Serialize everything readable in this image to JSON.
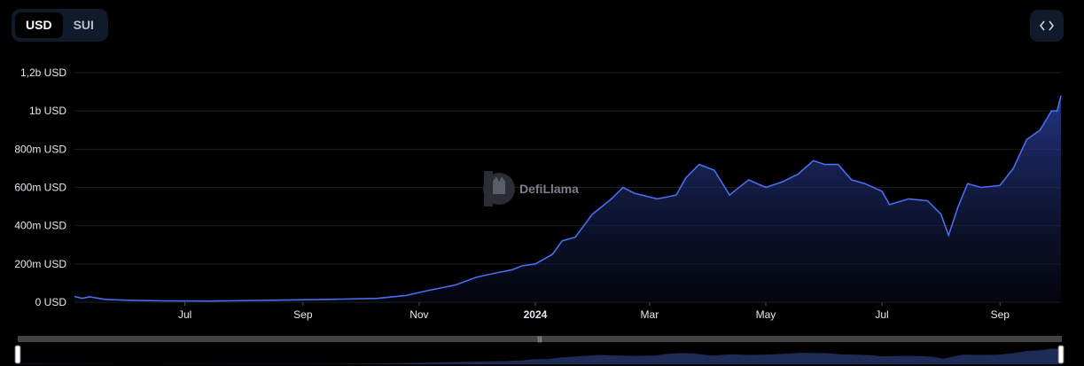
{
  "currency_toggle": {
    "options": [
      "USD",
      "SUI"
    ],
    "selected": "USD"
  },
  "embed_button": {
    "icon": "code-brackets-icon"
  },
  "watermark": {
    "text": "DefiLlama"
  },
  "colors": {
    "line": "#4a6cf0",
    "grid": "#1b1f27",
    "background": "#000000",
    "slider": "#444444"
  },
  "chart_data": {
    "type": "area",
    "title": "",
    "xlabel": "",
    "ylabel": "",
    "ylim": [
      0,
      1200000000
    ],
    "y_ticks": [
      {
        "value": 0,
        "label": "0 USD"
      },
      {
        "value": 200000000,
        "label": "200m USD"
      },
      {
        "value": 400000000,
        "label": "400m USD"
      },
      {
        "value": 600000000,
        "label": "600m USD"
      },
      {
        "value": 800000000,
        "label": "800m USD"
      },
      {
        "value": 1000000000,
        "label": "1b USD"
      },
      {
        "value": 1200000000,
        "label": "1,2b USD"
      }
    ],
    "x_range": [
      "2023-05-04",
      "2024-10-03"
    ],
    "x_ticks": [
      {
        "date": "2023-07-01",
        "label": "Jul",
        "bold": false
      },
      {
        "date": "2023-09-01",
        "label": "Sep",
        "bold": false
      },
      {
        "date": "2023-11-01",
        "label": "Nov",
        "bold": false
      },
      {
        "date": "2024-01-01",
        "label": "2024",
        "bold": true
      },
      {
        "date": "2024-03-01",
        "label": "Mar",
        "bold": false
      },
      {
        "date": "2024-05-01",
        "label": "May",
        "bold": false
      },
      {
        "date": "2024-07-01",
        "label": "Jul",
        "bold": false
      },
      {
        "date": "2024-09-01",
        "label": "Sep",
        "bold": false
      }
    ],
    "grid": true,
    "series": [
      {
        "points": [
          [
            "2023-05-04",
            30000000
          ],
          [
            "2023-05-08",
            20000000
          ],
          [
            "2023-05-12",
            28000000
          ],
          [
            "2023-05-20",
            15000000
          ],
          [
            "2023-06-01",
            10000000
          ],
          [
            "2023-06-20",
            7000000
          ],
          [
            "2023-07-15",
            6000000
          ],
          [
            "2023-08-15",
            10000000
          ],
          [
            "2023-09-15",
            15000000
          ],
          [
            "2023-10-10",
            20000000
          ],
          [
            "2023-10-25",
            35000000
          ],
          [
            "2023-11-05",
            60000000
          ],
          [
            "2023-11-20",
            90000000
          ],
          [
            "2023-12-01",
            130000000
          ],
          [
            "2023-12-10",
            150000000
          ],
          [
            "2023-12-20",
            170000000
          ],
          [
            "2023-12-25",
            190000000
          ],
          [
            "2024-01-01",
            200000000
          ],
          [
            "2024-01-10",
            250000000
          ],
          [
            "2024-01-15",
            320000000
          ],
          [
            "2024-01-22",
            340000000
          ],
          [
            "2024-01-31",
            460000000
          ],
          [
            "2024-02-10",
            540000000
          ],
          [
            "2024-02-16",
            600000000
          ],
          [
            "2024-02-22",
            570000000
          ],
          [
            "2024-03-05",
            540000000
          ],
          [
            "2024-03-15",
            560000000
          ],
          [
            "2024-03-20",
            650000000
          ],
          [
            "2024-03-27",
            720000000
          ],
          [
            "2024-04-04",
            690000000
          ],
          [
            "2024-04-12",
            560000000
          ],
          [
            "2024-04-22",
            640000000
          ],
          [
            "2024-05-01",
            600000000
          ],
          [
            "2024-05-10",
            630000000
          ],
          [
            "2024-05-18",
            670000000
          ],
          [
            "2024-05-26",
            740000000
          ],
          [
            "2024-06-01",
            720000000
          ],
          [
            "2024-06-08",
            720000000
          ],
          [
            "2024-06-15",
            640000000
          ],
          [
            "2024-06-22",
            620000000
          ],
          [
            "2024-07-01",
            580000000
          ],
          [
            "2024-07-05",
            510000000
          ],
          [
            "2024-07-15",
            540000000
          ],
          [
            "2024-07-25",
            530000000
          ],
          [
            "2024-08-01",
            460000000
          ],
          [
            "2024-08-05",
            350000000
          ],
          [
            "2024-08-10",
            500000000
          ],
          [
            "2024-08-15",
            620000000
          ],
          [
            "2024-08-22",
            600000000
          ],
          [
            "2024-09-01",
            610000000
          ],
          [
            "2024-09-08",
            700000000
          ],
          [
            "2024-09-15",
            850000000
          ],
          [
            "2024-09-22",
            900000000
          ],
          [
            "2024-09-28",
            1000000000
          ],
          [
            "2024-10-01",
            1000000000
          ],
          [
            "2024-10-03",
            1080000000
          ]
        ]
      }
    ]
  }
}
